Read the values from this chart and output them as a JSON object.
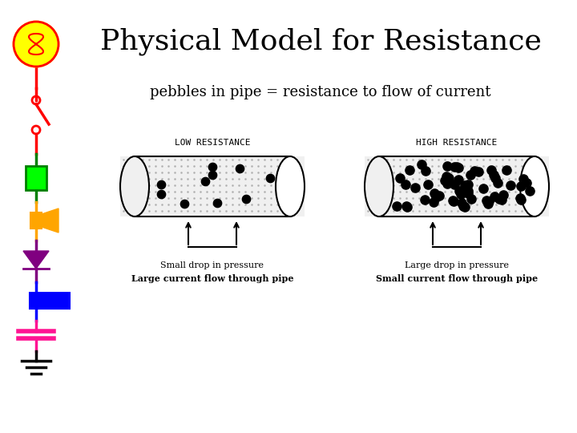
{
  "title": "Physical Model for Resistance",
  "subtitle": "pebbles in pipe = resistance to flow of current",
  "low_label": "LOW RESISTANCE",
  "high_label": "HIGH RESISTANCE",
  "low_line1": "Small drop in pressure",
  "low_line2": "Large current flow through pipe",
  "high_line1": "Large drop in pressure",
  "high_line2": "Small current flow through pipe",
  "bg_color": "#ffffff",
  "title_fontsize": 26,
  "subtitle_fontsize": 13,
  "text_fontsize": 8,
  "label_fontsize": 8
}
